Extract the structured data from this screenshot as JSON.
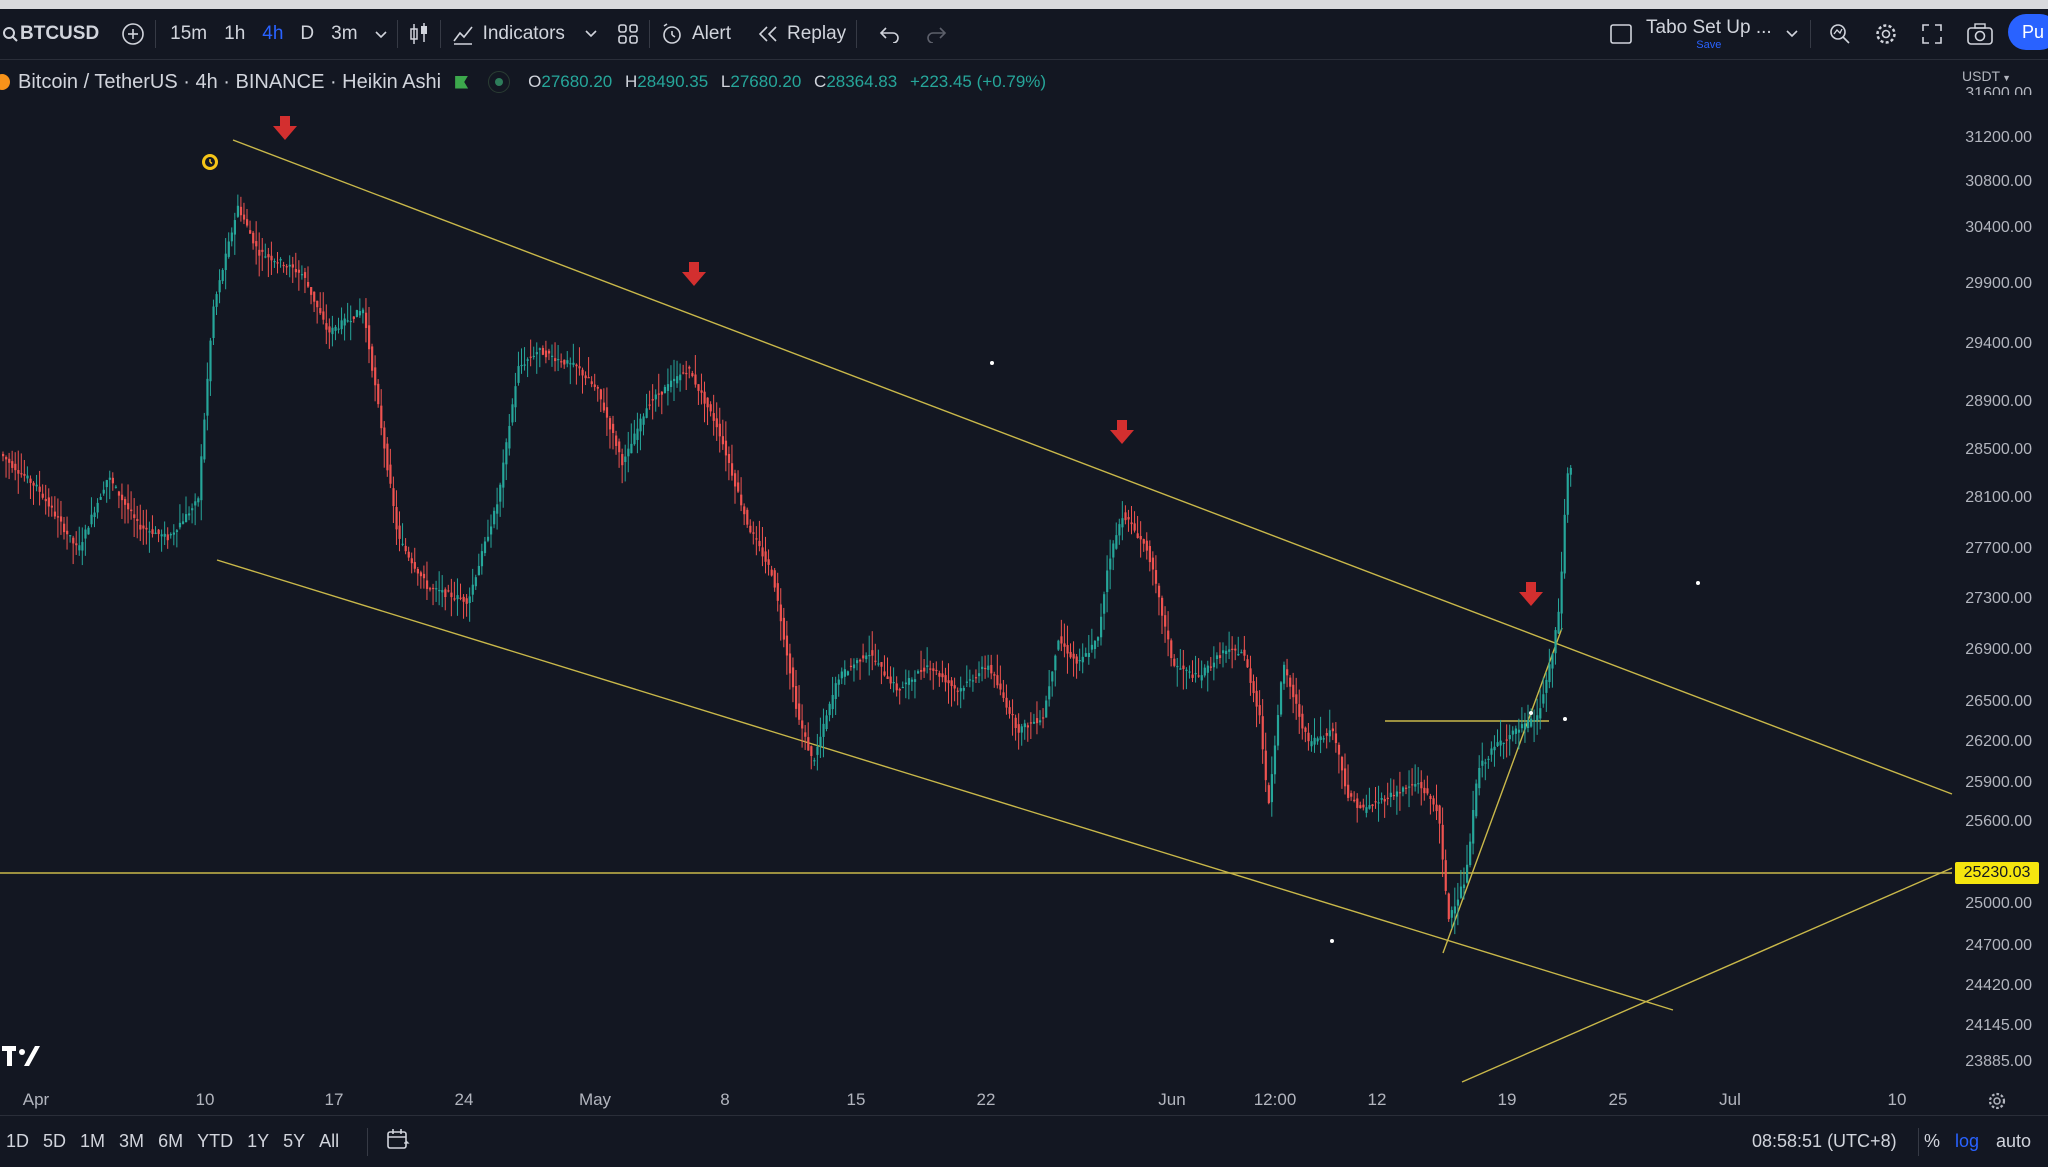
{
  "toolbar": {
    "symbol": "BTCUSD",
    "intervals": [
      "15m",
      "1h",
      "4h",
      "D",
      "3m"
    ],
    "active_interval": "4h",
    "indicators_label": "Indicators",
    "alert_label": "Alert",
    "replay_label": "Replay",
    "layout_name": "Tabo Set Up ...",
    "layout_save": "Save",
    "publish_label": "Pu"
  },
  "legend": {
    "title": "Bitcoin / TetherUS · 4h · BINANCE · Heikin Ashi",
    "o_label": "O",
    "o": "27680.20",
    "h_label": "H",
    "h": "28490.35",
    "l_label": "L",
    "l": "27680.20",
    "c_label": "C",
    "c": "28364.83",
    "change": "+223.45 (+0.79%)"
  },
  "price_axis": {
    "currency": "USDT",
    "top_partial": "31600.00",
    "labels": [
      "31200.00",
      "30800.00",
      "30400.00",
      "29900.00",
      "29400.00",
      "28900.00",
      "28500.00",
      "28100.00",
      "27700.00",
      "27300.00",
      "26900.00",
      "26500.00",
      "26200.00",
      "25900.00",
      "25600.00",
      "25000.00",
      "24700.00",
      "24420.00",
      "24145.00",
      "23885.00"
    ],
    "highlight": "25230.03"
  },
  "time_axis": {
    "labels": [
      "Apr",
      "10",
      "17",
      "24",
      "May",
      "8",
      "15",
      "22",
      "Jun",
      "12:00",
      "12",
      "19",
      "25",
      "Jul",
      "10"
    ]
  },
  "bottom": {
    "ranges": [
      "1D",
      "5D",
      "1M",
      "3M",
      "6M",
      "YTD",
      "1Y",
      "5Y",
      "All"
    ],
    "clock": "08:58:51 (UTC+8)",
    "percent": "%",
    "log": "log",
    "auto": "auto"
  },
  "colors": {
    "up": "#26a69a",
    "down": "#ef5350",
    "trendline": "#c9b84a",
    "accent": "#2962ff",
    "marker": "#d32f2f"
  },
  "chart_data": {
    "type": "candlestick",
    "symbol": "Bitcoin / TetherUS",
    "interval": "4h",
    "style": "Heikin Ashi",
    "ylim": [
      23800,
      31700
    ],
    "x_range": [
      "Apr",
      "Jul 10"
    ],
    "last_close": 28364.83,
    "horizontal_level": 25230.03
  }
}
